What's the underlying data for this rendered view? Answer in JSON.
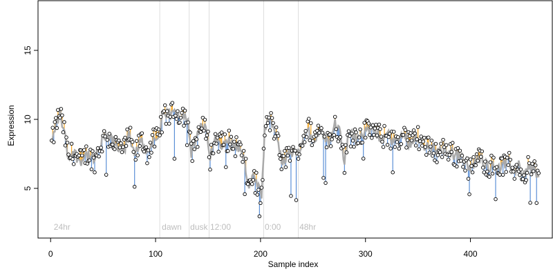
{
  "chart_data": {
    "type": "scatter",
    "title": "",
    "xlabel": "Sample index",
    "ylabel": "Expression",
    "xlim": [
      -12,
      478
    ],
    "ylim": [
      1.4,
      18.6
    ],
    "xticks": [
      0,
      100,
      200,
      300,
      400
    ],
    "yticks": [
      5,
      10,
      15
    ],
    "grid": false,
    "colors": {
      "fitted_line": "#aaaaaa",
      "above_residual": "#f5a623",
      "below_residual": "#5b8fd6",
      "point_fill": "#ffffff",
      "point_stroke": "#000000",
      "vline": "#dddddd"
    },
    "vlines": [
      104,
      132,
      151,
      203,
      236
    ],
    "annotations": [
      {
        "x": 3,
        "text": "24hr"
      },
      {
        "x": 106,
        "text": "dawn"
      },
      {
        "x": 133,
        "text": "dusk"
      },
      {
        "x": 152,
        "text": "12:00"
      },
      {
        "x": 204,
        "text": "0:00"
      },
      {
        "x": 237,
        "text": "48hr"
      }
    ],
    "annotation_y": 2.0,
    "observed_anchors": [
      [
        1,
        8.2
      ],
      [
        5,
        9.6
      ],
      [
        9,
        10.5
      ],
      [
        13,
        9.0
      ],
      [
        17,
        7.3
      ],
      [
        22,
        7.6
      ],
      [
        28,
        7.0
      ],
      [
        35,
        7.5
      ],
      [
        42,
        7.0
      ],
      [
        47,
        8.0
      ],
      [
        52,
        8.8
      ],
      [
        58,
        8.5
      ],
      [
        63,
        8.1
      ],
      [
        70,
        7.8
      ],
      [
        75,
        8.9
      ],
      [
        80,
        7.2
      ],
      [
        86,
        8.6
      ],
      [
        92,
        7.6
      ],
      [
        97,
        8.4
      ],
      [
        102,
        8.6
      ],
      [
        106,
        9.9
      ],
      [
        110,
        10.3
      ],
      [
        118,
        10.4
      ],
      [
        125,
        10.5
      ],
      [
        131,
        10.1
      ],
      [
        134,
        7.5
      ],
      [
        138,
        8.4
      ],
      [
        143,
        9.4
      ],
      [
        149,
        9.2
      ],
      [
        152,
        7.2
      ],
      [
        157,
        8.6
      ],
      [
        163,
        8.3
      ],
      [
        168,
        8.5
      ],
      [
        173,
        8.2
      ],
      [
        178,
        8.1
      ],
      [
        183,
        7.4
      ],
      [
        186,
        6.3
      ],
      [
        189,
        5.2
      ],
      [
        193,
        5.9
      ],
      [
        197,
        5.1
      ],
      [
        201,
        4.4
      ],
      [
        204,
        9.1
      ],
      [
        208,
        9.9
      ],
      [
        212,
        9.6
      ],
      [
        216,
        8.4
      ],
      [
        221,
        6.7
      ],
      [
        226,
        7.6
      ],
      [
        231,
        7.3
      ],
      [
        236,
        7.6
      ],
      [
        241,
        8.8
      ],
      [
        246,
        9.3
      ],
      [
        251,
        8.6
      ],
      [
        256,
        9.3
      ],
      [
        261,
        8.8
      ],
      [
        266,
        8.5
      ],
      [
        271,
        9.6
      ],
      [
        276,
        8.9
      ],
      [
        280,
        6.9
      ],
      [
        284,
        8.9
      ],
      [
        289,
        8.8
      ],
      [
        295,
        9.0
      ],
      [
        300,
        9.1
      ],
      [
        305,
        9.3
      ],
      [
        310,
        9.1
      ],
      [
        316,
        8.6
      ],
      [
        321,
        8.9
      ],
      [
        327,
        8.4
      ],
      [
        332,
        8.6
      ],
      [
        337,
        8.9
      ],
      [
        342,
        8.2
      ],
      [
        348,
        8.8
      ],
      [
        353,
        8.6
      ],
      [
        358,
        7.9
      ],
      [
        364,
        8.0
      ],
      [
        369,
        7.5
      ],
      [
        374,
        7.9
      ],
      [
        379,
        7.8
      ],
      [
        385,
        7.4
      ],
      [
        390,
        7.4
      ],
      [
        395,
        6.9
      ],
      [
        400,
        6.3
      ],
      [
        405,
        7.0
      ],
      [
        410,
        7.2
      ],
      [
        416,
        6.7
      ],
      [
        421,
        6.6
      ],
      [
        426,
        6.6
      ],
      [
        431,
        6.6
      ],
      [
        436,
        6.9
      ],
      [
        441,
        6.3
      ],
      [
        446,
        6.6
      ],
      [
        451,
        6.1
      ],
      [
        456,
        6.5
      ],
      [
        461,
        6.4
      ],
      [
        465,
        5.8
      ]
    ],
    "point_x_start": 1,
    "point_x_end": 465,
    "series": [
      {
        "name": "",
        "kind": "observed points"
      },
      {
        "name": "",
        "kind": "fitted line"
      }
    ]
  }
}
